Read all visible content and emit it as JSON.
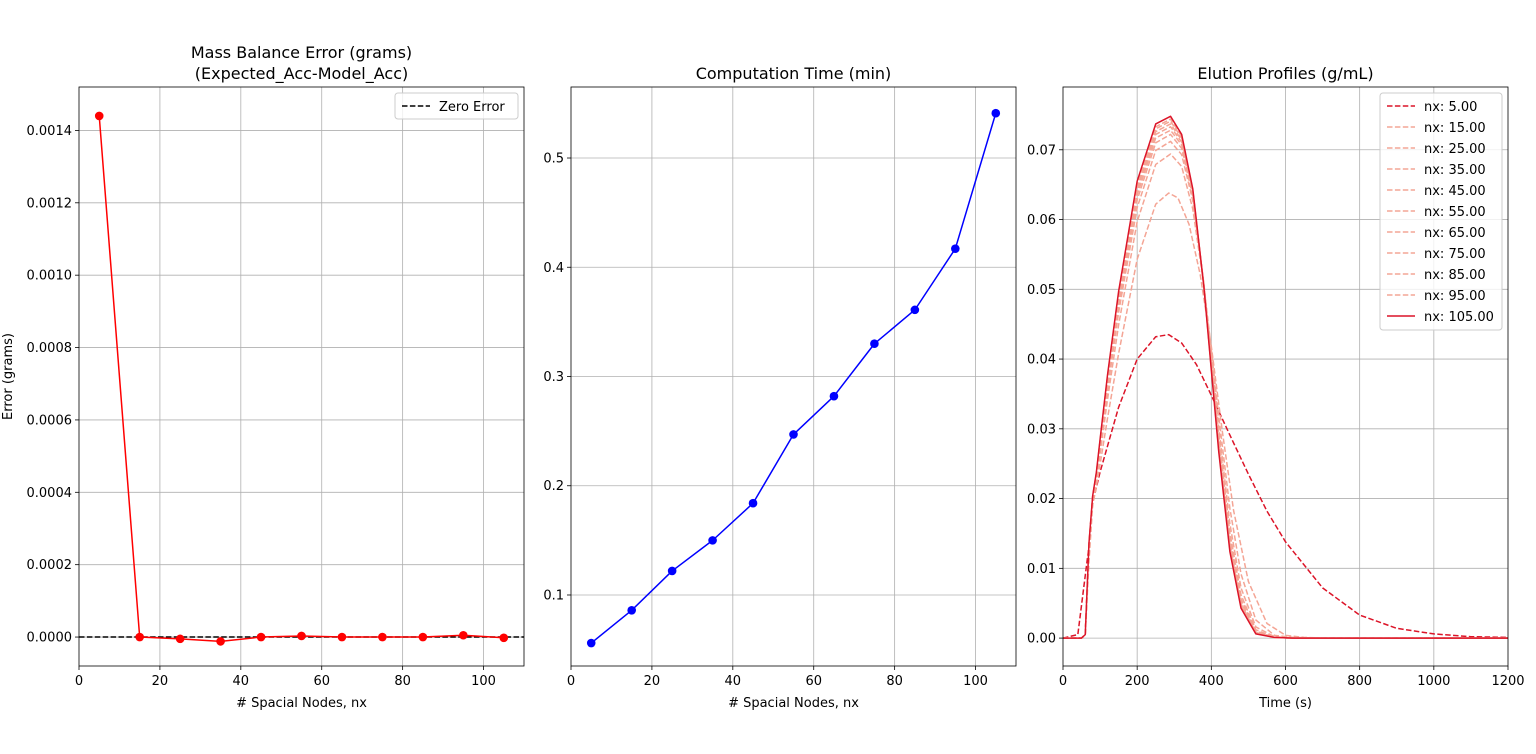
{
  "chart_data": [
    {
      "type": "line",
      "title": "Mass Balance Error (grams)",
      "subtitle": "(Expected_Acc-Model_Acc)",
      "xlabel": "# Spacial Nodes, nx",
      "ylabel": "Error (grams)",
      "xlim": [
        0,
        110
      ],
      "ylim": [
        -8e-05,
        0.00152
      ],
      "xticks": [
        0,
        20,
        40,
        60,
        80,
        100
      ],
      "xtick_labels": [
        "0",
        "20",
        "40",
        "60",
        "80",
        "100"
      ],
      "yticks": [
        0,
        0.0002,
        0.0004,
        0.0006,
        0.0008,
        0.001,
        0.0012,
        0.0014
      ],
      "ytick_labels": [
        "0.0000",
        "0.0002",
        "0.0004",
        "0.0006",
        "0.0008",
        "0.0010",
        "0.0012",
        "0.0014"
      ],
      "grid": true,
      "legend_position": "top-right",
      "legend_entries": [
        "Zero Error"
      ],
      "series": [
        {
          "color": "#ff0000",
          "marker": "o",
          "x": [
            5,
            15,
            25,
            35,
            45,
            55,
            65,
            75,
            85,
            95,
            105
          ],
          "y": [
            0.00144,
            0.0,
            -5e-06,
            -1.2e-05,
            0.0,
            3e-06,
            0.0,
            0.0,
            0.0,
            5e-06,
            -2e-06
          ]
        }
      ],
      "reference_line": {
        "name": "Zero Error",
        "y": 0,
        "color": "#000000",
        "style": "dashed"
      }
    },
    {
      "type": "line",
      "title": "Computation Time (min)",
      "xlabel": "# Spacial Nodes, nx",
      "xlim": [
        0,
        110
      ],
      "ylim": [
        0.035,
        0.565
      ],
      "xticks": [
        0,
        20,
        40,
        60,
        80,
        100
      ],
      "xtick_labels": [
        "0",
        "20",
        "40",
        "60",
        "80",
        "100"
      ],
      "yticks": [
        0.1,
        0.2,
        0.3,
        0.4,
        0.5
      ],
      "ytick_labels": [
        "0.1",
        "0.2",
        "0.3",
        "0.4",
        "0.5"
      ],
      "grid": true,
      "series": [
        {
          "color": "#0000ff",
          "marker": "o",
          "x": [
            5,
            15,
            25,
            35,
            45,
            55,
            65,
            75,
            85,
            95,
            105
          ],
          "y": [
            0.056,
            0.086,
            0.122,
            0.15,
            0.184,
            0.247,
            0.282,
            0.33,
            0.361,
            0.417,
            0.541
          ]
        }
      ]
    },
    {
      "type": "line",
      "title": "Elution Profiles (g/mL)",
      "xlabel": "Time (s)",
      "xlim": [
        0,
        1200
      ],
      "ylim": [
        -0.004,
        0.079
      ],
      "xticks": [
        0,
        200,
        400,
        600,
        800,
        1000,
        1200
      ],
      "xtick_labels": [
        "0",
        "200",
        "400",
        "600",
        "800",
        "1000",
        "1200"
      ],
      "yticks": [
        0,
        0.01,
        0.02,
        0.03,
        0.04,
        0.05,
        0.06,
        0.07
      ],
      "ytick_labels": [
        "0.00",
        "0.01",
        "0.02",
        "0.03",
        "0.04",
        "0.05",
        "0.06",
        "0.07"
      ],
      "grid": true,
      "legend_position": "top-right",
      "series": [
        {
          "name": "nx: 5.00",
          "peak": 0.0435,
          "color": "#dc1428",
          "style": "dashed",
          "x": [
            0,
            40,
            70,
            80,
            100,
            150,
            200,
            250,
            285,
            320,
            360,
            400,
            450,
            500,
            550,
            600,
            700,
            800,
            900,
            1000,
            1100,
            1200
          ],
          "y": [
            0,
            0.0005,
            0.0132,
            0.0194,
            0.0238,
            0.0331,
            0.04,
            0.0432,
            0.0435,
            0.0423,
            0.0392,
            0.0348,
            0.0291,
            0.0235,
            0.0182,
            0.0138,
            0.0072,
            0.0033,
            0.0014,
            0.0006,
            0.0002,
            0.0001
          ]
        },
        {
          "name": "nx: 15.00",
          "peak": 0.0638,
          "color": "#f4a595",
          "style": "dashed",
          "x": [
            0,
            50,
            60,
            70,
            80,
            90,
            100,
            120,
            150,
            200,
            250,
            285,
            310,
            340,
            370,
            400,
            430,
            460,
            500,
            550,
            600,
            650,
            700,
            800,
            1200
          ],
          "y": [
            0,
            0,
            0.0005,
            0.0109,
            0.0191,
            0.0217,
            0.0249,
            0.0315,
            0.0408,
            0.0543,
            0.0622,
            0.0638,
            0.0631,
            0.0593,
            0.0521,
            0.0418,
            0.0295,
            0.0183,
            0.0081,
            0.0021,
            0.0004,
            0.0001,
            0,
            0,
            0
          ]
        },
        {
          "name": "nx: 25.00",
          "peak": 0.0694,
          "color": "#f4a595",
          "style": "dashed",
          "x": [
            0,
            50,
            60,
            70,
            80,
            90,
            100,
            120,
            150,
            200,
            250,
            290,
            320,
            350,
            380,
            400,
            420,
            450,
            480,
            520,
            570,
            620,
            700,
            800,
            1200
          ],
          "y": [
            0,
            0,
            0.0005,
            0.0121,
            0.0197,
            0.0225,
            0.0264,
            0.0342,
            0.0449,
            0.0597,
            0.0679,
            0.0694,
            0.0676,
            0.0615,
            0.0506,
            0.0413,
            0.0318,
            0.0186,
            0.0092,
            0.0026,
            0.0004,
            0.0001,
            0,
            0,
            0
          ]
        },
        {
          "name": "nx: 35.00",
          "peak": 0.0712,
          "color": "#f4a595",
          "style": "dashed",
          "x": [
            0,
            50,
            60,
            70,
            80,
            90,
            100,
            120,
            150,
            200,
            250,
            290,
            320,
            350,
            380,
            400,
            420,
            450,
            480,
            520,
            570,
            620,
            700,
            800,
            1200
          ],
          "y": [
            0,
            0,
            0.0005,
            0.0126,
            0.0199,
            0.0229,
            0.0271,
            0.0355,
            0.0467,
            0.0617,
            0.0699,
            0.0712,
            0.0693,
            0.0627,
            0.0507,
            0.0405,
            0.0302,
            0.0164,
            0.0072,
            0.0016,
            0.0002,
            0,
            0,
            0,
            0
          ]
        },
        {
          "name": "nx: 45.00",
          "peak": 0.0722,
          "color": "#f4a595",
          "style": "dashed",
          "x": [
            0,
            50,
            60,
            70,
            80,
            90,
            100,
            120,
            150,
            200,
            250,
            290,
            320,
            350,
            380,
            400,
            420,
            450,
            480,
            520,
            570,
            620,
            700,
            800,
            1200
          ],
          "y": [
            0,
            0,
            0.0005,
            0.0129,
            0.02,
            0.0231,
            0.0275,
            0.0362,
            0.0476,
            0.0628,
            0.071,
            0.0722,
            0.0702,
            0.0633,
            0.0507,
            0.0399,
            0.0292,
            0.0151,
            0.0062,
            0.0012,
            0.0001,
            0,
            0,
            0,
            0
          ]
        },
        {
          "name": "nx: 55.00",
          "peak": 0.0728,
          "color": "#f4a595",
          "style": "dashed",
          "x": [
            0,
            50,
            60,
            70,
            80,
            90,
            100,
            120,
            150,
            200,
            250,
            290,
            320,
            350,
            380,
            400,
            420,
            450,
            480,
            520,
            570,
            620,
            700,
            800,
            1200
          ],
          "y": [
            0,
            0,
            0.0005,
            0.0131,
            0.0201,
            0.0233,
            0.0278,
            0.0366,
            0.0482,
            0.0635,
            0.0717,
            0.0728,
            0.0707,
            0.0636,
            0.0506,
            0.0395,
            0.0285,
            0.0143,
            0.0056,
            0.001,
            0.0001,
            0,
            0,
            0,
            0
          ]
        },
        {
          "name": "nx: 65.00",
          "peak": 0.0733,
          "color": "#f4a595",
          "style": "dashed",
          "x": [
            0,
            50,
            60,
            70,
            80,
            90,
            100,
            120,
            150,
            200,
            250,
            290,
            320,
            350,
            380,
            400,
            420,
            450,
            480,
            520,
            570,
            620,
            700,
            800,
            1200
          ],
          "y": [
            0,
            0,
            0.0005,
            0.0132,
            0.0202,
            0.0234,
            0.028,
            0.0369,
            0.0486,
            0.064,
            0.0722,
            0.0733,
            0.0711,
            0.0638,
            0.0505,
            0.0392,
            0.028,
            0.0137,
            0.0052,
            0.0009,
            0.0001,
            0,
            0,
            0,
            0
          ]
        },
        {
          "name": "nx: 75.00",
          "peak": 0.0737,
          "color": "#f4a595",
          "style": "dashed",
          "x": [
            0,
            50,
            60,
            70,
            80,
            90,
            100,
            120,
            150,
            200,
            250,
            290,
            320,
            350,
            380,
            400,
            420,
            450,
            480,
            520,
            570,
            620,
            700,
            800,
            1200
          ],
          "y": [
            0,
            0,
            0.0005,
            0.0133,
            0.0202,
            0.0235,
            0.0281,
            0.0371,
            0.0489,
            0.0644,
            0.0726,
            0.0737,
            0.0714,
            0.064,
            0.0504,
            0.039,
            0.0276,
            0.0133,
            0.0049,
            0.0008,
            0.0001,
            0,
            0,
            0,
            0
          ]
        },
        {
          "name": "nx: 85.00",
          "peak": 0.0741,
          "color": "#f4a595",
          "style": "dashed",
          "x": [
            0,
            50,
            60,
            70,
            80,
            90,
            100,
            120,
            150,
            200,
            250,
            290,
            320,
            350,
            380,
            400,
            420,
            450,
            480,
            520,
            570,
            620,
            700,
            800,
            1200
          ],
          "y": [
            0,
            0,
            0.0005,
            0.0134,
            0.0203,
            0.0236,
            0.0282,
            0.0373,
            0.0492,
            0.0648,
            0.073,
            0.0741,
            0.0717,
            0.0641,
            0.0504,
            0.0388,
            0.0273,
            0.013,
            0.0047,
            0.0007,
            0.0001,
            0,
            0,
            0,
            0
          ]
        },
        {
          "name": "nx: 95.00",
          "peak": 0.0744,
          "color": "#f4a595",
          "style": "dashed",
          "x": [
            0,
            50,
            60,
            70,
            80,
            90,
            100,
            120,
            150,
            200,
            250,
            290,
            320,
            350,
            380,
            400,
            420,
            450,
            480,
            520,
            570,
            620,
            700,
            800,
            1200
          ],
          "y": [
            0,
            0,
            0.0005,
            0.0135,
            0.0203,
            0.0237,
            0.0283,
            0.0375,
            0.0494,
            0.0651,
            0.0733,
            0.0744,
            0.0719,
            0.0642,
            0.0503,
            0.0386,
            0.027,
            0.0127,
            0.0045,
            0.0007,
            0.0001,
            0,
            0,
            0,
            0
          ]
        },
        {
          "name": "nx: 105.00",
          "peak": 0.0748,
          "color": "#dc1428",
          "style": "solid",
          "x": [
            0,
            50,
            60,
            70,
            80,
            90,
            100,
            120,
            150,
            200,
            250,
            290,
            320,
            350,
            380,
            400,
            420,
            450,
            480,
            520,
            570,
            620,
            700,
            800,
            1200
          ],
          "y": [
            0,
            0,
            0.0005,
            0.0136,
            0.0204,
            0.0238,
            0.0285,
            0.0377,
            0.0497,
            0.0655,
            0.0737,
            0.0748,
            0.0722,
            0.0644,
            0.0503,
            0.0384,
            0.0267,
            0.0124,
            0.0043,
            0.0006,
            0.0001,
            0,
            0,
            0,
            0
          ]
        }
      ]
    }
  ]
}
